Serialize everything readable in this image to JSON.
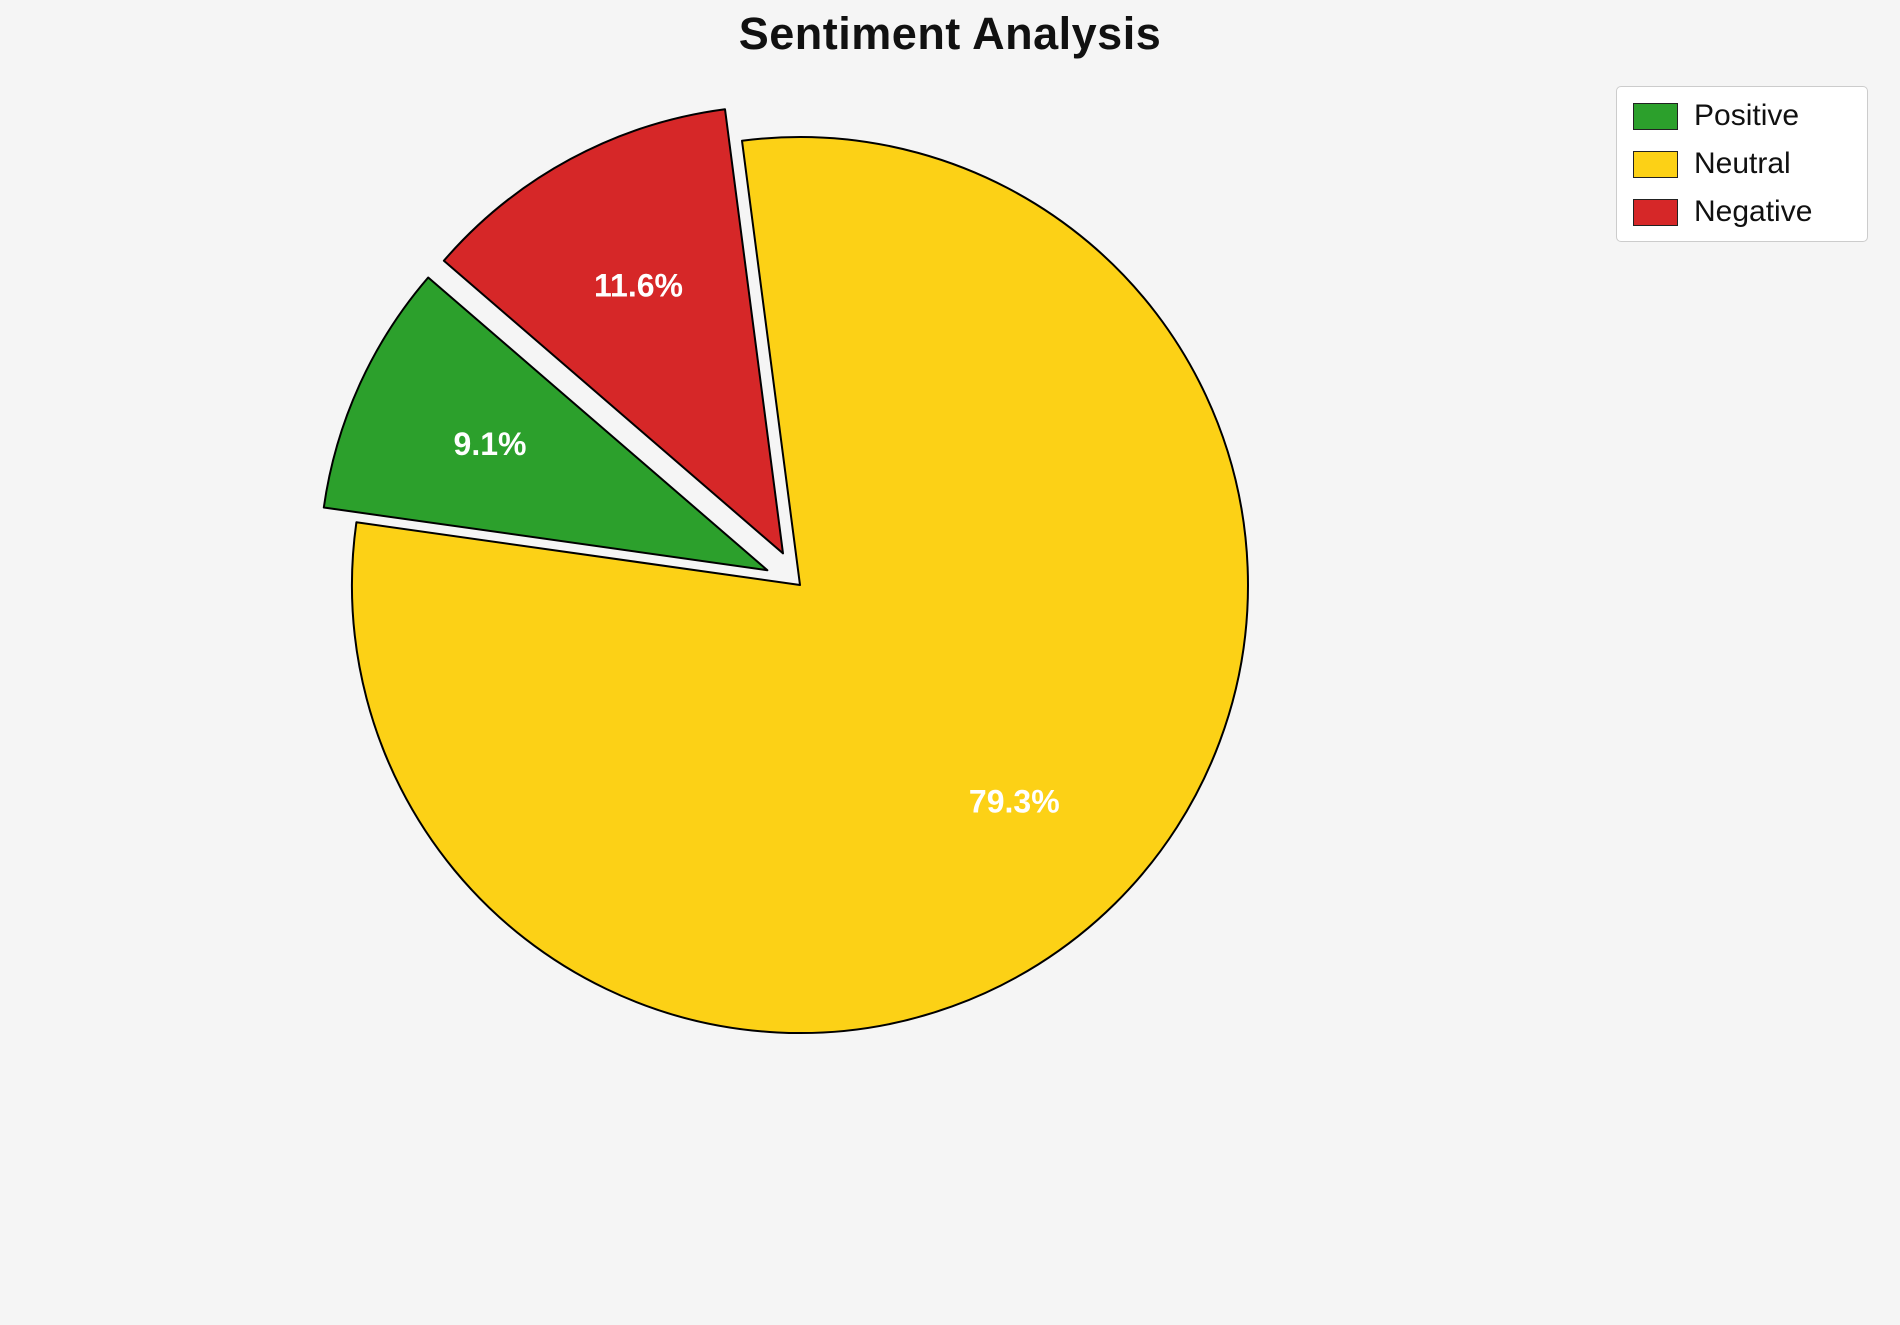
{
  "title": "Sentiment Analysis",
  "colors": {
    "background": "#f5f5f5",
    "legend_background": "#ffffff",
    "legend_border": "#cccccc",
    "slice_edge": "#000000",
    "label_text": "#ffffff",
    "title_text": "#111111"
  },
  "chart_data": {
    "type": "pie",
    "title": "Sentiment Analysis",
    "labels": [
      "Positive",
      "Neutral",
      "Negative"
    ],
    "values": [
      9.1,
      79.3,
      11.6
    ],
    "slice_labels": [
      "9.1%",
      "79.3%",
      "11.6%"
    ],
    "colors": [
      "#2ca02c",
      "#fcd116",
      "#d62728"
    ],
    "explode": [
      0.08,
      0,
      0.08
    ],
    "start_angle": 139.2,
    "direction": "counterclockwise",
    "legend": {
      "position": "upper right",
      "entries": [
        "Positive",
        "Neutral",
        "Negative"
      ]
    }
  }
}
